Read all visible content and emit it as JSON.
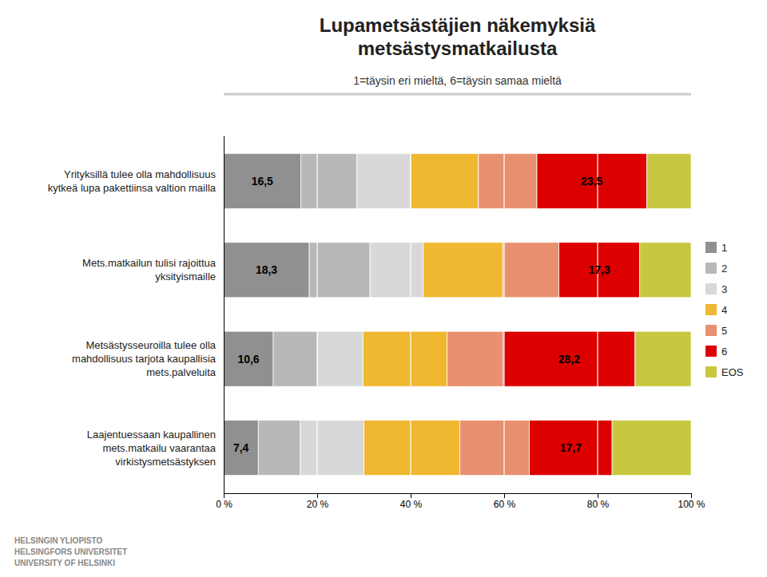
{
  "chart_data": {
    "type": "bar",
    "orientation": "horizontal",
    "stacked": true,
    "title": "Lupametsästäjien näkemyksiä\nmetsästysmatkailusta",
    "subtitle": "1=täysin eri mieltä, 6=täysin samaa mieltä",
    "categories": [
      "Yrityksillä tulee olla mahdollisuus\nkytkeä lupa pakettiinsa valtion mailla",
      "Mets.matkailun tulisi rajoittua\nyksityismaille",
      "Metsästysseuroilla tulee olla\nmahdollisuus tarjota kaupallisia\nmets.palveluita",
      "Laajentuessaan kaupallinen\nmets.matkailu vaarantaa\nvirkistysmetsästyksen"
    ],
    "series": [
      {
        "name": "1",
        "color": "#909090",
        "values": [
          16.5,
          18.3,
          10.6,
          7.4
        ],
        "data_labels": true,
        "value_labels": [
          "16,5",
          "18,3",
          "10,6",
          "7,4"
        ]
      },
      {
        "name": "2",
        "color": "#b8b8b8",
        "values": [
          12.0,
          13.0,
          9.5,
          9.0
        ]
      },
      {
        "name": "3",
        "color": "#d8d8d8",
        "values": [
          11.5,
          11.4,
          9.7,
          13.6
        ]
      },
      {
        "name": "4",
        "color": "#f0b830",
        "values": [
          14.5,
          17.0,
          18.0,
          20.5
        ]
      },
      {
        "name": "5",
        "color": "#e89070",
        "values": [
          12.5,
          12.0,
          12.0,
          14.9
        ]
      },
      {
        "name": "6",
        "color": "#dd0000",
        "values": [
          23.5,
          17.3,
          28.2,
          17.7
        ],
        "data_labels": true,
        "value_labels": [
          "23,5",
          "17,3",
          "28,2",
          "17,7"
        ]
      },
      {
        "name": "EOS",
        "color": "#c8c840",
        "values": [
          9.5,
          11.0,
          12.0,
          16.9
        ]
      }
    ],
    "xlim": [
      0,
      100
    ],
    "xticks": [
      {
        "value": 0,
        "label": "0 %"
      },
      {
        "value": 20,
        "label": "20 %"
      },
      {
        "value": 40,
        "label": "40 %"
      },
      {
        "value": 60,
        "label": "60 %"
      },
      {
        "value": 80,
        "label": "80 %"
      },
      {
        "value": 100,
        "label": "100 %"
      }
    ],
    "grid": true,
    "legend": "right",
    "annotations": [
      "HELSINGIN YLIOPISTO\nHELSINGFORS UNIVERSITET\nUNIVERSITY OF HELSINKI"
    ]
  }
}
